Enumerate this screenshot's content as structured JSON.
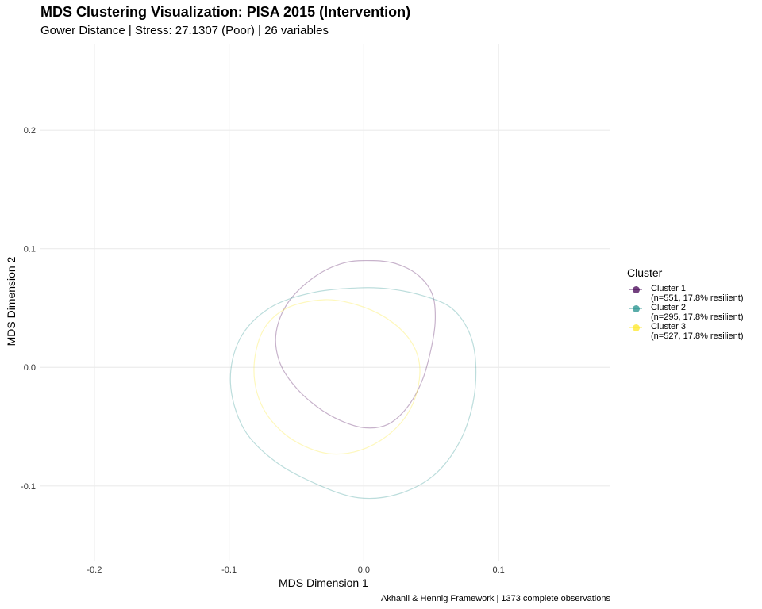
{
  "chart_data": {
    "type": "scatter",
    "title": "MDS Clustering Visualization: PISA 2015 (Intervention)",
    "subtitle": "Gower Distance | Stress: 27.1307 (Poor) | 26 variables",
    "xlabel": "MDS Dimension 1",
    "ylabel": "MDS Dimension 2",
    "caption": "Akhanli & Hennig Framework | 1373 complete observations",
    "xlim": [
      -0.24,
      0.183
    ],
    "ylim": [
      -0.163,
      0.273
    ],
    "x_ticks": [
      -0.2,
      -0.1,
      0.0,
      0.1
    ],
    "x_tick_labels": [
      "-0.2",
      "-0.1",
      "0.0",
      "0.1"
    ],
    "y_ticks": [
      -0.1,
      0.0,
      0.1,
      0.2
    ],
    "y_tick_labels": [
      "-0.1",
      "0.0",
      "0.1",
      "0.2"
    ],
    "grid": true,
    "legend_position": "right",
    "legend_title": "Cluster",
    "series": [
      {
        "name": "Cluster 1",
        "legend_line1": "Cluster 1",
        "legend_line2": "(n=551, 17.8% resilient)",
        "color": "#440154",
        "ellipse": [
          [
            0.007,
            0.09
          ],
          [
            0.025,
            0.087
          ],
          [
            0.041,
            0.077
          ],
          [
            0.051,
            0.061
          ],
          [
            0.053,
            0.04
          ],
          [
            0.05,
            0.016
          ],
          [
            0.043,
            -0.012
          ],
          [
            0.032,
            -0.034
          ],
          [
            0.018,
            -0.048
          ],
          [
            0.001,
            -0.051
          ],
          [
            -0.017,
            -0.045
          ],
          [
            -0.035,
            -0.033
          ],
          [
            -0.052,
            -0.015
          ],
          [
            -0.063,
            0.006
          ],
          [
            -0.065,
            0.03
          ],
          [
            -0.056,
            0.055
          ],
          [
            -0.037,
            0.076
          ],
          [
            -0.015,
            0.088
          ],
          [
            0.007,
            0.09
          ]
        ]
      },
      {
        "name": "Cluster 2",
        "legend_line1": "Cluster 2",
        "legend_line2": "(n=295, 17.8% resilient)",
        "color": "#21908C",
        "ellipse": [
          [
            -0.004,
            0.067
          ],
          [
            0.02,
            0.066
          ],
          [
            0.045,
            0.06
          ],
          [
            0.065,
            0.05
          ],
          [
            0.078,
            0.03
          ],
          [
            0.083,
            0.004
          ],
          [
            0.081,
            -0.03
          ],
          [
            0.071,
            -0.063
          ],
          [
            0.052,
            -0.091
          ],
          [
            0.025,
            -0.107
          ],
          [
            -0.004,
            -0.11
          ],
          [
            -0.034,
            -0.099
          ],
          [
            -0.065,
            -0.08
          ],
          [
            -0.089,
            -0.052
          ],
          [
            -0.099,
            -0.013
          ],
          [
            -0.092,
            0.024
          ],
          [
            -0.07,
            0.05
          ],
          [
            -0.038,
            0.063
          ],
          [
            -0.004,
            0.067
          ]
        ]
      },
      {
        "name": "Cluster 3",
        "legend_line1": "Cluster 3",
        "legend_line2": "(n=527, 17.8% resilient)",
        "color": "#FDE725",
        "ellipse": [
          [
            -0.029,
            0.057
          ],
          [
            -0.006,
            0.053
          ],
          [
            0.016,
            0.042
          ],
          [
            0.033,
            0.025
          ],
          [
            0.041,
            0.005
          ],
          [
            0.04,
            -0.018
          ],
          [
            0.032,
            -0.04
          ],
          [
            0.017,
            -0.058
          ],
          [
            -0.003,
            -0.07
          ],
          [
            -0.024,
            -0.073
          ],
          [
            -0.043,
            -0.067
          ],
          [
            -0.06,
            -0.055
          ],
          [
            -0.074,
            -0.036
          ],
          [
            -0.081,
            -0.012
          ],
          [
            -0.08,
            0.014
          ],
          [
            -0.072,
            0.036
          ],
          [
            -0.055,
            0.051
          ],
          [
            -0.029,
            0.057
          ]
        ]
      }
    ]
  }
}
